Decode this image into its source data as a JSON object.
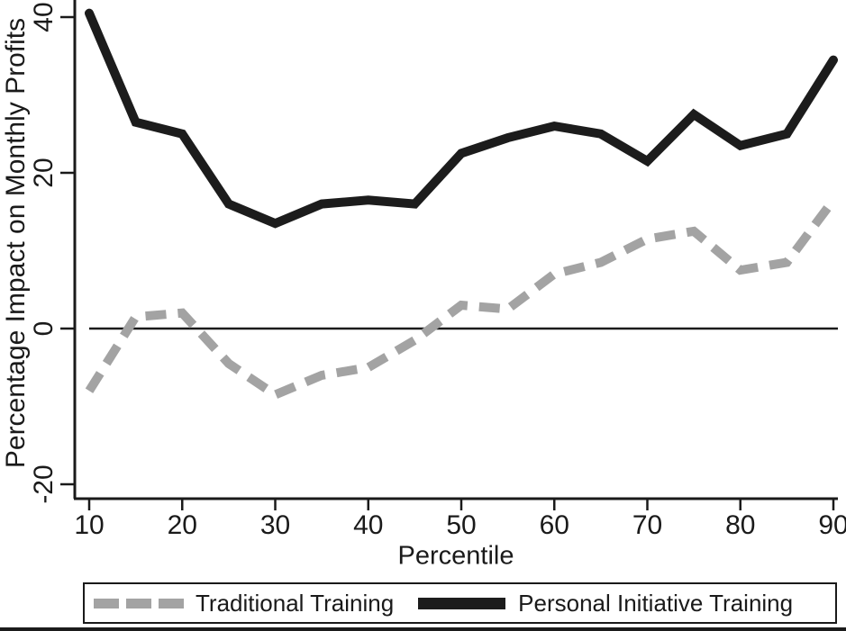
{
  "chart_data": {
    "type": "line",
    "title": "",
    "xlabel": "Percentile",
    "ylabel": "Percentage Impact on Monthly Profits",
    "x": [
      10,
      15,
      20,
      25,
      30,
      35,
      40,
      45,
      50,
      55,
      60,
      65,
      70,
      75,
      80,
      85,
      90
    ],
    "x_ticks": [
      10,
      20,
      30,
      40,
      50,
      60,
      70,
      80,
      90
    ],
    "y_ticks": [
      -20,
      0,
      20,
      40
    ],
    "xlim": [
      10,
      90
    ],
    "ylim": [
      -24,
      42
    ],
    "grid": false,
    "legend_position": "bottom",
    "reference_line_y": 0,
    "series": [
      {
        "name": "Traditional Training",
        "style": "dashed",
        "color": "#a3a3a3",
        "values": [
          -8,
          1.5,
          2,
          -4.5,
          -8.5,
          -6,
          -5,
          -1.5,
          3,
          2.5,
          7,
          8.5,
          11.5,
          12.5,
          7.5,
          8.5,
          16.5
        ]
      },
      {
        "name": "Personal Initiative Training",
        "style": "solid",
        "color": "#1c1c1c",
        "values": [
          40.5,
          26.5,
          25,
          16,
          13.5,
          16,
          16.5,
          16,
          22.5,
          24.5,
          26,
          25,
          21.5,
          27.5,
          23.5,
          25,
          34.5
        ]
      }
    ],
    "axis_color": "#1a1a1a"
  }
}
